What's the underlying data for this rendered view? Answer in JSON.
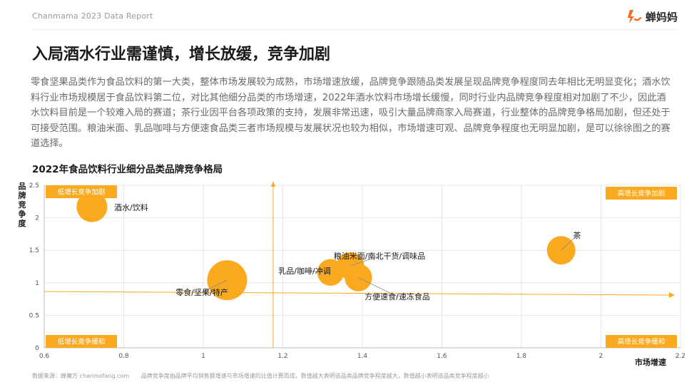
{
  "header": {
    "report_label": "Chanmama 2023 Data Report",
    "logo_text": "蝉妈妈"
  },
  "main_title": "入局酒水行业需谨慎，增长放缓，竞争加剧",
  "intro_text": "零食坚果品类作为食品饮料的第一大类，整体市场发展较为成熟，市场增速放缓，品牌竞争跟随品类发展呈现品牌竞争程度同去年相比无明显变化；酒水饮料行业市场规模居于食品饮料第二位，对比其他细分品类的市场增速，2022年酒水饮料市场增长缓慢，同时行业内品牌竞争程度相对加剧了不少，因此酒水饮料目前是一个较难入局的赛道；茶行业因平台各项政策的支持，发展非常迅速，吸引大量品牌商家入局赛道，行业整体的品牌竞争格局加剧，但还处于可接受范围。粮油米面、乳品咖啡与方便速食品类三者市场规模与发展状况也较为相似，市场增速可观、品牌竞争程度也无明显加剧，是可以徐徐图之的赛道选择。",
  "chart_data": {
    "type": "scatter",
    "title": "2022年食品饮料行业细分品类品牌竞争格局",
    "xlabel": "市场增速",
    "ylabel": "品牌竞争度",
    "xlim": [
      0.6,
      2.2
    ],
    "ylim": [
      0,
      2.5
    ],
    "x_ticks": [
      "0.6",
      "0.8",
      "1",
      "1.2",
      "1.4",
      "1.6",
      "1.8",
      "2",
      "2.2"
    ],
    "y_ticks": [
      "0",
      "0.5",
      "1",
      "1.5",
      "2",
      "2.5"
    ],
    "grid": true,
    "bubble_color": "#FBA91E",
    "series": [
      {
        "label": "酒水/饮料",
        "x": 0.72,
        "y": 2.17,
        "size": 0.6
      },
      {
        "label": "零食/坚果/特产",
        "x": 1.06,
        "y": 1.04,
        "size": 1.0
      },
      {
        "label": "乳品/咖啡/冲调",
        "x": 1.32,
        "y": 1.16,
        "size": 0.42
      },
      {
        "label": "粮油米面/南北干货/调味品",
        "x": 1.37,
        "y": 1.26,
        "size": 0.45
      },
      {
        "label": "方便速食/速冻食品",
        "x": 1.39,
        "y": 1.08,
        "size": 0.45
      },
      {
        "label": "茶",
        "x": 1.9,
        "y": 1.5,
        "size": 0.5
      }
    ],
    "quadrant_labels": {
      "top_left": "低增长竞争加剧",
      "top_right": "高增长竞争加剧",
      "bottom_left": "低增长竞争缓和",
      "bottom_right": "高增长竞争缓和"
    },
    "quadrant_color": "#FBA91E"
  },
  "footer": {
    "source": "数据来源：蝉魔方 chanmofang.com",
    "note": "品牌竞争度由品牌平均销售额增速与市场增速的比值计算而成，数值越大表明该品类品牌竞争程度越大，数值越小表明该品类竞争程度越小"
  }
}
